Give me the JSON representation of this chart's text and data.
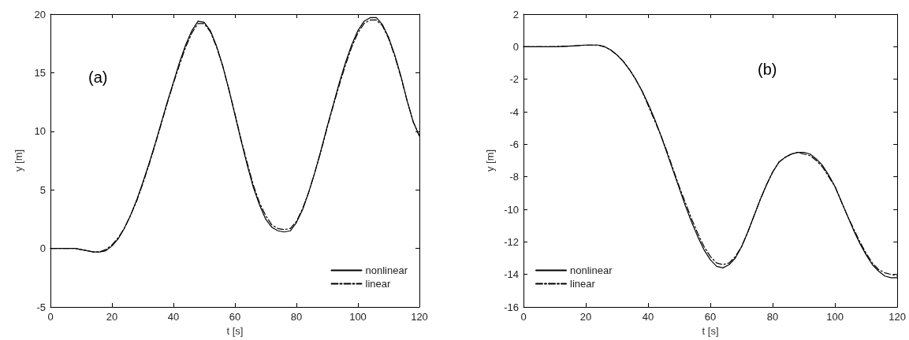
{
  "chart_data": [
    {
      "type": "line",
      "xlabel": "t [s]",
      "ylabel": "y [m]",
      "annotations": [
        "(a)"
      ],
      "xlim": [
        0,
        120
      ],
      "xticks": [
        0,
        20,
        40,
        60,
        80,
        100,
        120
      ],
      "ylim": [
        -5,
        20
      ],
      "yticks": [
        -5,
        0,
        5,
        10,
        15,
        20
      ],
      "grid": false,
      "legend": "bottom right",
      "marker": "none",
      "x": [
        0,
        4,
        8,
        10,
        12,
        14,
        16,
        18,
        20,
        22,
        24,
        26,
        28,
        30,
        32,
        34,
        36,
        38,
        40,
        42,
        44,
        46,
        48,
        50,
        52,
        54,
        56,
        58,
        60,
        62,
        64,
        66,
        68,
        70,
        72,
        74,
        76,
        78,
        80,
        82,
        84,
        86,
        88,
        90,
        92,
        94,
        96,
        98,
        100,
        102,
        104,
        106,
        108,
        110,
        112,
        114,
        116,
        118,
        120
      ],
      "series": [
        {
          "name": "nonlinear",
          "color": "#000000",
          "line_style": "solid",
          "values": [
            0,
            0,
            0,
            -0.1,
            -0.2,
            -0.3,
            -0.3,
            -0.2,
            0.2,
            0.8,
            1.7,
            2.8,
            4.1,
            5.6,
            7.2,
            8.9,
            10.7,
            12.5,
            14.2,
            15.9,
            17.4,
            18.6,
            19.4,
            19.3,
            18.6,
            17.3,
            15.6,
            13.6,
            11.4,
            9.2,
            7.1,
            5.2,
            3.7,
            2.5,
            1.8,
            1.5,
            1.4,
            1.5,
            2.2,
            3.3,
            4.8,
            6.5,
            8.4,
            10.4,
            12.3,
            14.2,
            15.9,
            17.4,
            18.6,
            19.4,
            19.7,
            19.7,
            19.1,
            18.0,
            16.5,
            14.7,
            12.6,
            10.8,
            9.6
          ]
        },
        {
          "name": "linear",
          "color": "#000000",
          "line_style": "dashdot",
          "values": [
            0,
            0,
            0,
            -0.1,
            -0.2,
            -0.3,
            -0.3,
            -0.1,
            0.3,
            0.9,
            1.7,
            2.8,
            4.0,
            5.5,
            7.1,
            8.8,
            10.6,
            12.4,
            14.1,
            15.7,
            17.2,
            18.4,
            19.2,
            19.2,
            18.5,
            17.2,
            15.6,
            13.6,
            11.5,
            9.3,
            7.3,
            5.4,
            3.9,
            2.8,
            2.0,
            1.7,
            1.6,
            1.7,
            2.3,
            3.4,
            4.8,
            6.5,
            8.3,
            10.3,
            12.2,
            14.0,
            15.7,
            17.2,
            18.4,
            19.2,
            19.5,
            19.5,
            19.0,
            17.9,
            16.4,
            14.6,
            12.6,
            10.8,
            9.6
          ]
        }
      ]
    },
    {
      "type": "line",
      "xlabel": "t [s]",
      "ylabel": "y [m]",
      "annotations": [
        "(b)"
      ],
      "xlim": [
        0,
        120
      ],
      "xticks": [
        0,
        20,
        40,
        60,
        80,
        100,
        120
      ],
      "ylim": [
        -16,
        2
      ],
      "yticks": [
        -16,
        -14,
        -12,
        -10,
        -8,
        -6,
        -4,
        -2,
        0,
        2
      ],
      "grid": false,
      "legend": "bottom left",
      "marker": "none",
      "x": [
        0,
        10,
        16,
        20,
        24,
        26,
        28,
        30,
        32,
        34,
        36,
        38,
        40,
        42,
        44,
        46,
        48,
        50,
        52,
        54,
        56,
        58,
        60,
        62,
        64,
        66,
        68,
        70,
        72,
        74,
        76,
        78,
        80,
        82,
        84,
        86,
        88,
        90,
        92,
        94,
        96,
        98,
        100,
        102,
        104,
        106,
        108,
        110,
        112,
        114,
        116,
        118,
        120
      ],
      "series": [
        {
          "name": "nonlinear",
          "color": "#000000",
          "line_style": "solid",
          "values": [
            0,
            0,
            0.05,
            0.1,
            0.1,
            0,
            -0.2,
            -0.5,
            -0.9,
            -1.4,
            -2.0,
            -2.7,
            -3.5,
            -4.4,
            -5.4,
            -6.5,
            -7.6,
            -8.7,
            -9.8,
            -10.8,
            -11.7,
            -12.5,
            -13.1,
            -13.5,
            -13.6,
            -13.4,
            -13.0,
            -12.3,
            -11.4,
            -10.4,
            -9.4,
            -8.5,
            -7.7,
            -7.1,
            -6.8,
            -6.6,
            -6.5,
            -6.5,
            -6.6,
            -6.9,
            -7.3,
            -7.9,
            -8.6,
            -9.5,
            -10.4,
            -11.3,
            -12.1,
            -12.8,
            -13.4,
            -13.8,
            -14.1,
            -14.2,
            -14.2
          ]
        },
        {
          "name": "linear",
          "color": "#000000",
          "line_style": "dashdot",
          "values": [
            0,
            0,
            0.05,
            0.1,
            0.1,
            0,
            -0.2,
            -0.5,
            -0.9,
            -1.4,
            -2.0,
            -2.7,
            -3.6,
            -4.5,
            -5.4,
            -6.4,
            -7.5,
            -8.6,
            -9.6,
            -10.6,
            -11.5,
            -12.3,
            -12.9,
            -13.3,
            -13.4,
            -13.3,
            -12.9,
            -12.3,
            -11.4,
            -10.4,
            -9.4,
            -8.5,
            -7.7,
            -7.1,
            -6.8,
            -6.6,
            -6.5,
            -6.6,
            -6.7,
            -7.0,
            -7.4,
            -8.0,
            -8.6,
            -9.5,
            -10.4,
            -11.2,
            -12.0,
            -12.7,
            -13.3,
            -13.7,
            -13.9,
            -14.0,
            -14.1
          ]
        }
      ]
    }
  ]
}
